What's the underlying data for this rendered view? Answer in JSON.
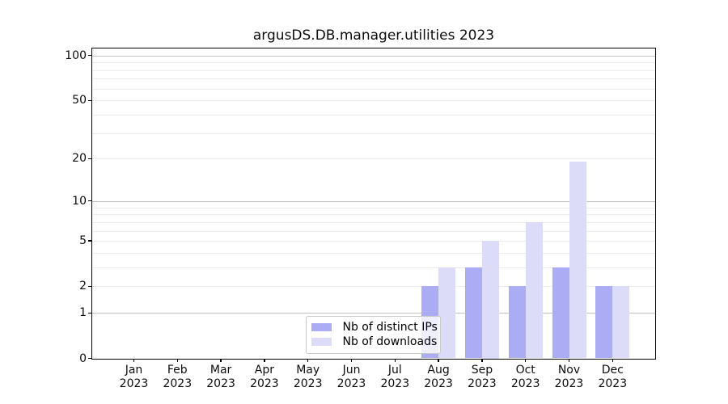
{
  "chart_data": {
    "type": "bar",
    "title": "argusDS.DB.manager.utilities 2023",
    "categories": [
      "Jan",
      "Feb",
      "Mar",
      "Apr",
      "May",
      "Jun",
      "Jul",
      "Aug",
      "Sep",
      "Oct",
      "Nov",
      "Dec"
    ],
    "x_year_label": "2023",
    "series": [
      {
        "name": "Nb of distinct IPs",
        "color": "#acacf4",
        "values": [
          0,
          0,
          0,
          0,
          0,
          0,
          0,
          2,
          3,
          2,
          3,
          2
        ]
      },
      {
        "name": "Nb of downloads",
        "color": "#dcdcf8",
        "values": [
          0,
          0,
          0,
          0,
          0,
          0,
          0,
          3,
          5,
          7,
          19,
          2
        ]
      }
    ],
    "yscale": "log10(1+v)",
    "ylim": [
      0,
      112
    ],
    "y_tick_labels": [
      0,
      1,
      2,
      5,
      10,
      20,
      50,
      100
    ],
    "y_major_gridlines": [
      1,
      10,
      100
    ],
    "y_minor_gridlines": [
      2,
      3,
      4,
      5,
      6,
      7,
      8,
      9,
      20,
      30,
      40,
      50,
      60,
      70,
      80,
      90
    ],
    "legend_position": "inside lower-center",
    "grid": true,
    "colors": {
      "major_grid": "#c3c3c3",
      "minor_grid": "#ececec",
      "axis": "#000000",
      "background": "#ffffff"
    }
  }
}
